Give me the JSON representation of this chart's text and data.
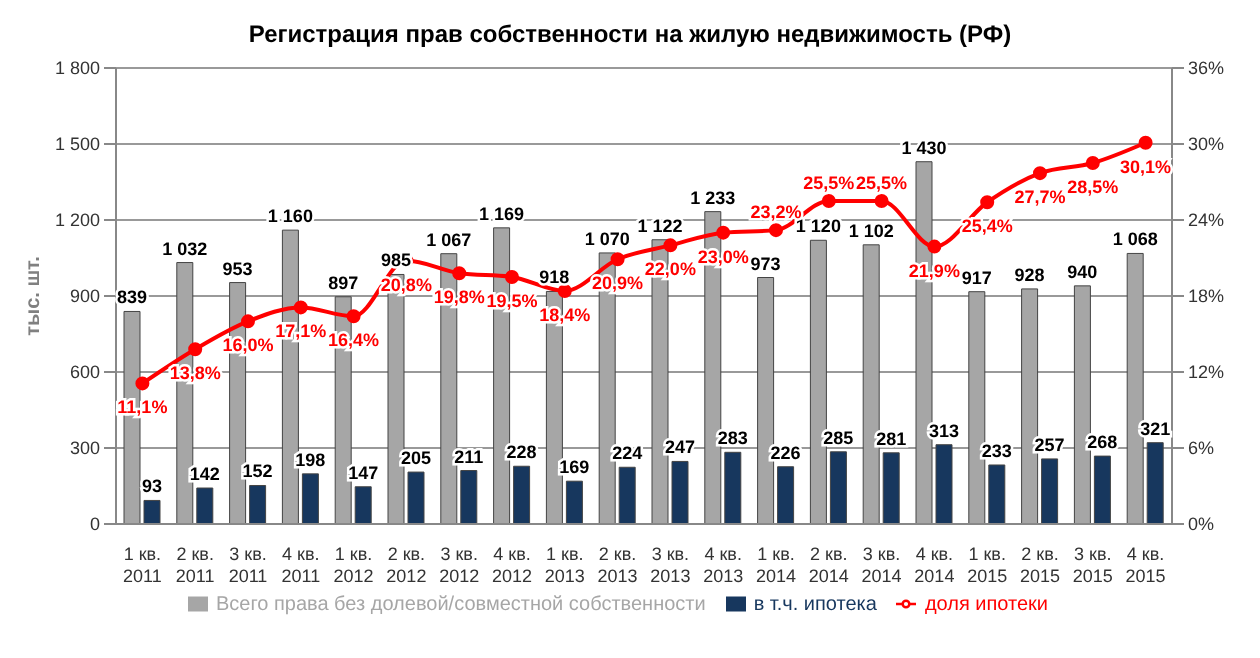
{
  "chart_data": {
    "type": "bar",
    "title": "Регистрация прав собственности на жилую недвижимость (РФ)",
    "ylabel": "тыс. шт.",
    "categories": [
      "1 кв. 2011",
      "2 кв. 2011",
      "3 кв. 2011",
      "4 кв. 2011",
      "1 кв. 2012",
      "2 кв. 2012",
      "3 кв. 2012",
      "4 кв. 2012",
      "1 кв. 2013",
      "2 кв. 2013",
      "3 кв. 2013",
      "4 кв. 2013",
      "1 кв. 2014",
      "2 кв. 2014",
      "3 кв. 2014",
      "4 кв. 2014",
      "1 кв. 2015",
      "2 кв. 2015",
      "3 кв. 2015",
      "4 кв. 2015"
    ],
    "series": [
      {
        "name": "Всего права без долевой/совместной собственности",
        "color": "#a6a6a6",
        "values": [
          839,
          1032,
          953,
          1160,
          897,
          985,
          1067,
          1169,
          918,
          1070,
          1122,
          1233,
          973,
          1120,
          1102,
          1430,
          917,
          928,
          940,
          1068
        ],
        "value_labels": [
          "839",
          "1 032",
          "953",
          "1 160",
          "897",
          "985",
          "1 067",
          "1 169",
          "918",
          "1 070",
          "1 122",
          "1 233",
          "973",
          "1 120",
          "1 102",
          "1 430",
          "917",
          "928",
          "940",
          "1 068"
        ]
      },
      {
        "name": "в т.ч. ипотека",
        "color": "#17375e",
        "values": [
          93,
          142,
          152,
          198,
          147,
          205,
          211,
          228,
          169,
          224,
          247,
          283,
          226,
          285,
          281,
          313,
          233,
          257,
          268,
          321
        ],
        "value_labels": [
          "93",
          "142",
          "152",
          "198",
          "147",
          "205",
          "211",
          "228",
          "169",
          "224",
          "247",
          "283",
          "226",
          "285",
          "281",
          "313",
          "233",
          "257",
          "268",
          "321"
        ]
      },
      {
        "name": "доля ипотеки",
        "type": "line",
        "axis": "y2",
        "color": "#ff0000",
        "values": [
          11.1,
          13.8,
          16.0,
          17.1,
          16.4,
          20.8,
          19.8,
          19.5,
          18.4,
          20.9,
          22.0,
          23.0,
          23.2,
          25.5,
          25.5,
          21.9,
          25.4,
          27.7,
          28.5,
          30.1
        ],
        "value_labels": [
          "11,1%",
          "13,8%",
          "16,0%",
          "17,1%",
          "16,4%",
          "20,8%",
          "19,8%",
          "19,5%",
          "18,4%",
          "20,9%",
          "22,0%",
          "23,0%",
          "23,2%",
          "25,5%",
          "25,5%",
          "21,9%",
          "25,4%",
          "27,7%",
          "28,5%",
          "30,1%"
        ]
      }
    ],
    "ylim": [
      0,
      1800
    ],
    "yticks": [
      0,
      300,
      600,
      900,
      {
        "value": 1200,
        "label": "1 200"
      },
      {
        "value": 1500,
        "label": "1 500"
      },
      {
        "value": 1800,
        "label": "1 800"
      }
    ],
    "y2lim": [
      0,
      36
    ],
    "y2ticks": [
      {
        "value": 0,
        "label": "0%"
      },
      {
        "value": 6,
        "label": "6%"
      },
      {
        "value": 12,
        "label": "12%"
      },
      {
        "value": 18,
        "label": "18%"
      },
      {
        "value": 24,
        "label": "24%"
      },
      {
        "value": 30,
        "label": "30%"
      },
      {
        "value": 36,
        "label": "36%"
      }
    ],
    "grid": "y",
    "legend": "bottom",
    "marker": "circle",
    "line_style": "solid"
  }
}
